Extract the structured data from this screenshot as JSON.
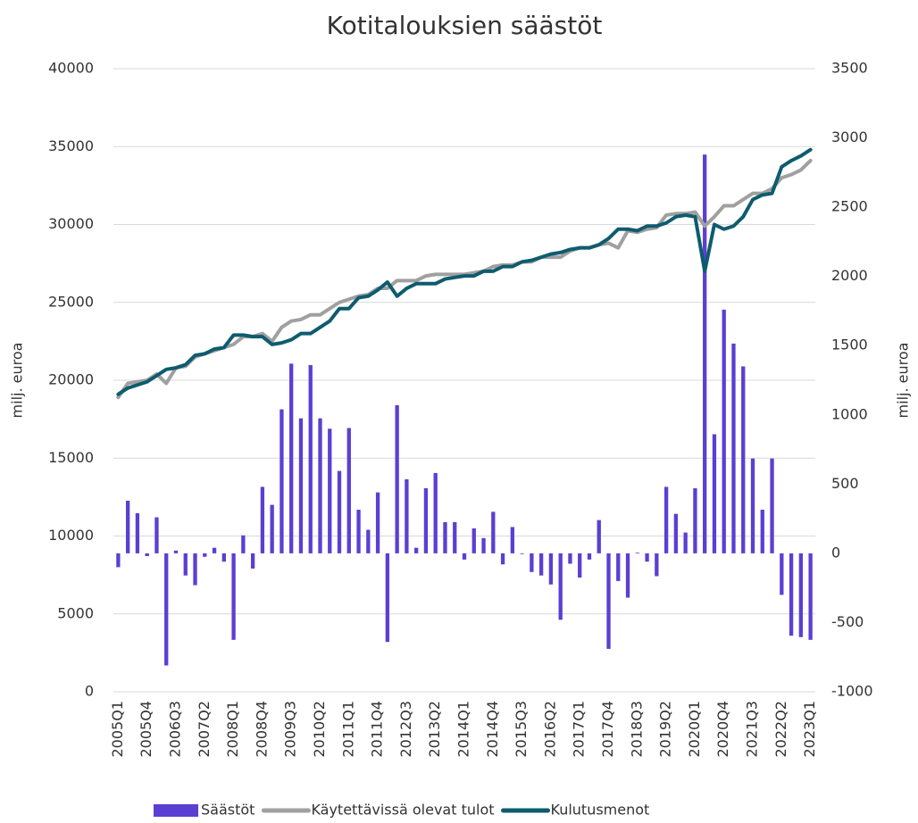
{
  "chart_data": {
    "type": "combo",
    "title": "Kotitalouksien säästöt",
    "ylabel": "milj. euroa",
    "y2label": "milj. euroa",
    "categories": [
      "2005Q1",
      null,
      null,
      "2005Q4",
      null,
      null,
      "2006Q3",
      null,
      null,
      "2007Q2",
      null,
      null,
      "2008Q1",
      null,
      null,
      "2008Q4",
      null,
      null,
      "2009Q3",
      null,
      null,
      "2010Q2",
      null,
      null,
      "2011Q1",
      null,
      null,
      "2011Q4",
      null,
      null,
      "2012Q3",
      null,
      null,
      "2013Q2",
      null,
      null,
      "2014Q1",
      null,
      null,
      "2014Q4",
      null,
      null,
      "2015Q3",
      null,
      null,
      "2016Q2",
      null,
      null,
      "2017Q1",
      null,
      null,
      "2017Q4",
      null,
      null,
      "2018Q3",
      null,
      null,
      "2019Q2",
      null,
      null,
      "2020Q1",
      null,
      null,
      "2020Q4",
      null,
      null,
      "2021Q3",
      null,
      null,
      "2022Q2",
      null,
      null,
      "2023Q1"
    ],
    "ylim": [
      0,
      40000
    ],
    "yticks": [
      0,
      5000,
      10000,
      15000,
      20000,
      25000,
      30000,
      35000,
      40000
    ],
    "y2lim": [
      -1000,
      3500
    ],
    "y2ticks": [
      -1000,
      -500,
      0,
      500,
      1000,
      1500,
      2000,
      2500,
      3000,
      3500
    ],
    "grid": true,
    "legend": "bottom",
    "series": [
      {
        "name": "Säästöt",
        "type": "bar",
        "axis": "y2",
        "color": "#5b3fd3",
        "values": [
          -100,
          380,
          290,
          -20,
          260,
          -810,
          20,
          -160,
          -230,
          -25,
          40,
          -60,
          -625,
          130,
          -110,
          480,
          350,
          1040,
          1370,
          975,
          1360,
          975,
          900,
          595,
          905,
          315,
          170,
          440,
          -640,
          1070,
          535,
          40,
          470,
          580,
          225,
          225,
          -45,
          180,
          110,
          300,
          -80,
          190,
          -5,
          -135,
          -160,
          -225,
          -480,
          -75,
          -175,
          -45,
          240,
          -690,
          -200,
          -320,
          5,
          -60,
          -165,
          480,
          285,
          150,
          470,
          2880,
          860,
          1760,
          1515,
          1350,
          685,
          315,
          685,
          -300,
          -595,
          -605,
          -625
        ]
      },
      {
        "name": "Käytettävissä olevat tulot",
        "type": "line",
        "color": "#a0a0a0",
        "values": [
          18900,
          19800,
          19900,
          20000,
          20400,
          19800,
          20800,
          20900,
          21500,
          21700,
          21900,
          22100,
          22300,
          22800,
          22800,
          23000,
          22500,
          23400,
          23800,
          23900,
          24200,
          24200,
          24600,
          25000,
          25200,
          25400,
          25500,
          25900,
          25900,
          26400,
          26400,
          26400,
          26700,
          26800,
          26800,
          26800,
          26800,
          26900,
          27000,
          27300,
          27400,
          27400,
          27600,
          27600,
          27900,
          27900,
          27900,
          28300,
          28500,
          28500,
          28700,
          28800,
          28500,
          29600,
          29500,
          29700,
          29800,
          30600,
          30700,
          30700,
          30800,
          29900,
          30500,
          31200,
          31200,
          31600,
          32000,
          32000,
          32300,
          33000,
          33200,
          33500,
          34100
        ]
      },
      {
        "name": "Kulutusmenot",
        "type": "line",
        "color": "#0e5c6e",
        "values": [
          19100,
          19500,
          19700,
          19900,
          20300,
          20700,
          20800,
          21000,
          21600,
          21700,
          22000,
          22100,
          22900,
          22900,
          22800,
          22800,
          22300,
          22400,
          22600,
          23000,
          23000,
          23400,
          23800,
          24600,
          24600,
          25300,
          25400,
          25800,
          26300,
          25400,
          25900,
          26200,
          26200,
          26200,
          26500,
          26600,
          26700,
          26700,
          27000,
          27000,
          27300,
          27300,
          27600,
          27700,
          27900,
          28100,
          28200,
          28400,
          28500,
          28500,
          28700,
          29100,
          29700,
          29700,
          29600,
          29900,
          29900,
          30100,
          30500,
          30600,
          30500,
          27000,
          30000,
          29700,
          29900,
          30500,
          31600,
          31900,
          32000,
          33700,
          34100,
          34400,
          34800
        ]
      }
    ]
  }
}
